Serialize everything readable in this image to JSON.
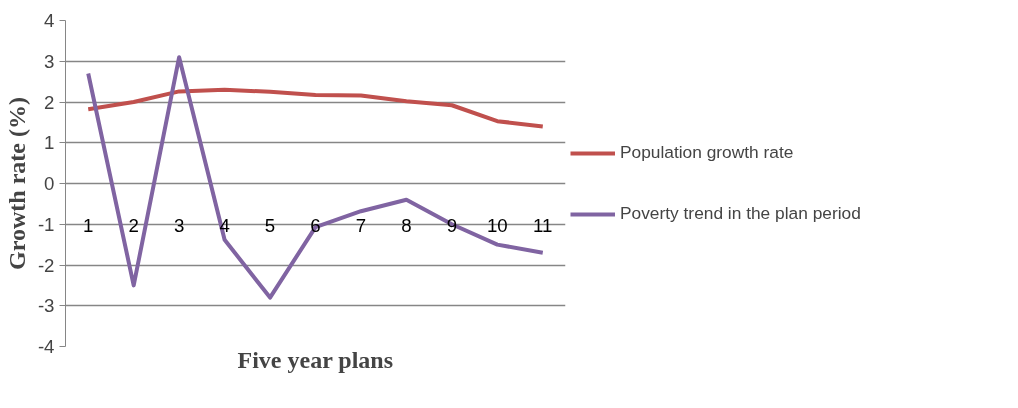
{
  "chart_data": {
    "type": "line",
    "xlabel": "Five year plans",
    "ylabel": "Growth rate (%)",
    "categories": [
      "1",
      "2",
      "3",
      "4",
      "5",
      "6",
      "7",
      "8",
      "9",
      "10",
      "11"
    ],
    "series": [
      {
        "name": "Population growth rate",
        "color": "#c0504d",
        "values": [
          1.82,
          2.0,
          2.26,
          2.3,
          2.25,
          2.17,
          2.16,
          2.02,
          1.92,
          1.53,
          1.4
        ]
      },
      {
        "name": "Poverty trend in the plan period",
        "color": "#8064a2",
        "values": [
          2.7,
          -2.5,
          3.1,
          -1.38,
          -2.8,
          -1.07,
          -0.68,
          -0.4,
          -1.0,
          -1.5,
          -1.7
        ]
      }
    ],
    "ylim": [
      -4,
      4
    ],
    "yticks": [
      -4,
      -3,
      -2,
      -1,
      0,
      1,
      2,
      3,
      4
    ],
    "grid": "y",
    "legend": "right",
    "marker": "none",
    "line_style": "solid"
  }
}
